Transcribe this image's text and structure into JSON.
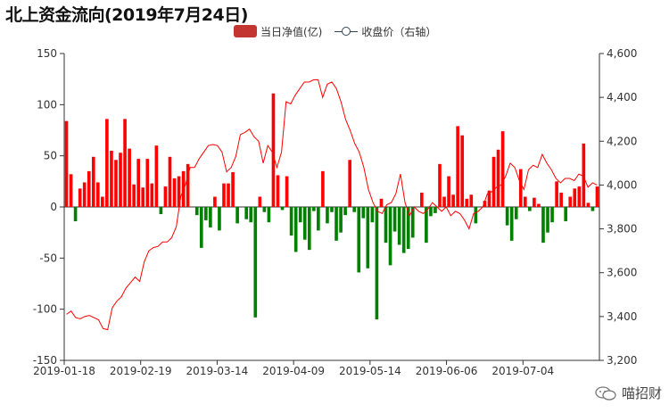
{
  "title": "北上资金流向(2019年7月24日)",
  "watermark": "喵招财",
  "chart_data": {
    "type": "bar+line",
    "title": "北上资金流向(2019年7月24日)",
    "legend": [
      "当日净值(亿)",
      "收盘价（右轴）"
    ],
    "legend_position": "top-center",
    "colors": {
      "positive": "#ff0000",
      "negative": "#008000",
      "line": "#ff0000",
      "legend_bar": "#c23531",
      "legend_line": "#2f4554"
    },
    "x_tick_labels": [
      "2019-01-18",
      "2019-02-19",
      "2019-03-14",
      "2019-04-09",
      "2019-05-14",
      "2019-06-06",
      "2019-07-04"
    ],
    "y_left": {
      "min": -150,
      "max": 150,
      "ticks": [
        -150,
        -100,
        -50,
        0,
        50,
        100,
        150
      ]
    },
    "y_right": {
      "min": 3200,
      "max": 4600,
      "ticks": [
        "3,200",
        "3,400",
        "3,600",
        "3,800",
        "4,000",
        "4,200",
        "4,400",
        "4,600"
      ]
    },
    "grid": false,
    "series": [
      {
        "name": "当日净值(亿)",
        "type": "bar",
        "values": [
          84,
          32,
          -14,
          18,
          24,
          35,
          49,
          24,
          10,
          86,
          55,
          46,
          53,
          86,
          57,
          22,
          47,
          19,
          47,
          23,
          60,
          -7,
          20,
          49,
          28,
          30,
          35,
          42,
          0,
          -8,
          -40,
          -13,
          -20,
          10,
          -23,
          23,
          23,
          34,
          -16,
          0,
          -12,
          -15,
          -108,
          10,
          -5,
          -15,
          111,
          31,
          -3,
          30,
          -28,
          -44,
          -15,
          -32,
          -42,
          -4,
          -23,
          35,
          -16,
          -5,
          -33,
          -25,
          -8,
          46,
          -5,
          -64,
          -11,
          -60,
          -15,
          -110,
          8,
          -35,
          -57,
          -24,
          -37,
          -45,
          -41,
          -30,
          0,
          14,
          -35,
          -9,
          -6,
          42,
          10,
          30,
          12,
          79,
          70,
          8,
          12,
          -16,
          0,
          6,
          16,
          49,
          56,
          74,
          -18,
          -33,
          -12,
          37,
          10,
          -4,
          9,
          3,
          -35,
          -25,
          -15,
          25,
          14,
          -14,
          10,
          18,
          20,
          62,
          4,
          -4,
          20
        ],
        "note": "values are bar heights in 亿, estimated from the left axis"
      },
      {
        "name": "收盘价（右轴）",
        "type": "line",
        "values": [
          3410,
          3425,
          3395,
          3390,
          3400,
          3405,
          3395,
          3385,
          3345,
          3340,
          3440,
          3470,
          3490,
          3530,
          3555,
          3580,
          3560,
          3650,
          3700,
          3715,
          3720,
          3740,
          3740,
          3760,
          3810,
          3950,
          4000,
          4080,
          4080,
          4120,
          4150,
          4180,
          4185,
          4180,
          4150,
          4060,
          4080,
          4130,
          4230,
          4240,
          4255,
          4220,
          4200,
          4100,
          4180,
          4150,
          4080,
          4150,
          4380,
          4370,
          4410,
          4440,
          4470,
          4470,
          4480,
          4480,
          4400,
          4460,
          4470,
          4440,
          4380,
          4300,
          4250,
          4190,
          4150,
          4080,
          3980,
          3920,
          3880,
          3870,
          3910,
          3920,
          3960,
          4050,
          3920,
          3860,
          3900,
          3880,
          3870,
          3890,
          3920,
          3900,
          3880,
          3900,
          3860,
          3880,
          3870,
          3840,
          3800,
          3870,
          3880,
          3900,
          3960,
          3970,
          3990,
          4000,
          4040,
          4100,
          4080,
          4020,
          3980,
          4070,
          4090,
          4080,
          4140,
          4100,
          4070,
          4030,
          4010,
          4030,
          4030,
          4020,
          4050,
          4040,
          3990,
          4010,
          4000
        ],
        "note": "closing prices estimated from the right axis"
      }
    ]
  }
}
